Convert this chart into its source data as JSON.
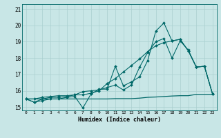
{
  "xlabel": "Humidex (Indice chaleur)",
  "xlim": [
    -0.5,
    23.5
  ],
  "ylim": [
    14.8,
    21.3
  ],
  "yticks": [
    15,
    16,
    17,
    18,
    19,
    20,
    21
  ],
  "xticks": [
    0,
    1,
    2,
    3,
    4,
    5,
    6,
    7,
    8,
    9,
    10,
    11,
    12,
    13,
    14,
    15,
    16,
    17,
    18,
    19,
    20,
    21,
    22,
    23
  ],
  "background_color": "#c8e6e6",
  "grid_color": "#aad0d0",
  "line_color": "#006868",
  "series": [
    [
      15.5,
      15.3,
      15.4,
      15.5,
      15.5,
      15.6,
      15.65,
      14.95,
      15.8,
      16.1,
      16.1,
      17.5,
      16.3,
      16.55,
      16.85,
      17.85,
      19.65,
      20.15,
      19.05,
      19.15,
      18.45,
      17.45,
      17.5,
      15.8
    ],
    [
      15.5,
      15.3,
      15.5,
      15.6,
      15.6,
      15.65,
      15.75,
      15.95,
      16.0,
      16.05,
      16.2,
      16.35,
      16.05,
      16.35,
      17.45,
      18.35,
      19.0,
      19.2,
      18.0,
      19.05,
      18.5,
      17.45,
      17.5,
      15.8
    ],
    [
      15.5,
      15.5,
      15.6,
      15.65,
      15.7,
      15.7,
      15.75,
      15.75,
      15.85,
      16.0,
      16.45,
      16.75,
      17.15,
      17.55,
      17.95,
      18.4,
      18.75,
      18.95,
      19.05,
      19.15,
      18.45,
      17.45,
      17.5,
      15.8
    ],
    [
      15.5,
      15.5,
      15.5,
      15.5,
      15.5,
      15.5,
      15.5,
      15.5,
      15.5,
      15.5,
      15.5,
      15.52,
      15.52,
      15.52,
      15.55,
      15.6,
      15.62,
      15.65,
      15.68,
      15.7,
      15.7,
      15.78,
      15.78,
      15.78
    ]
  ]
}
